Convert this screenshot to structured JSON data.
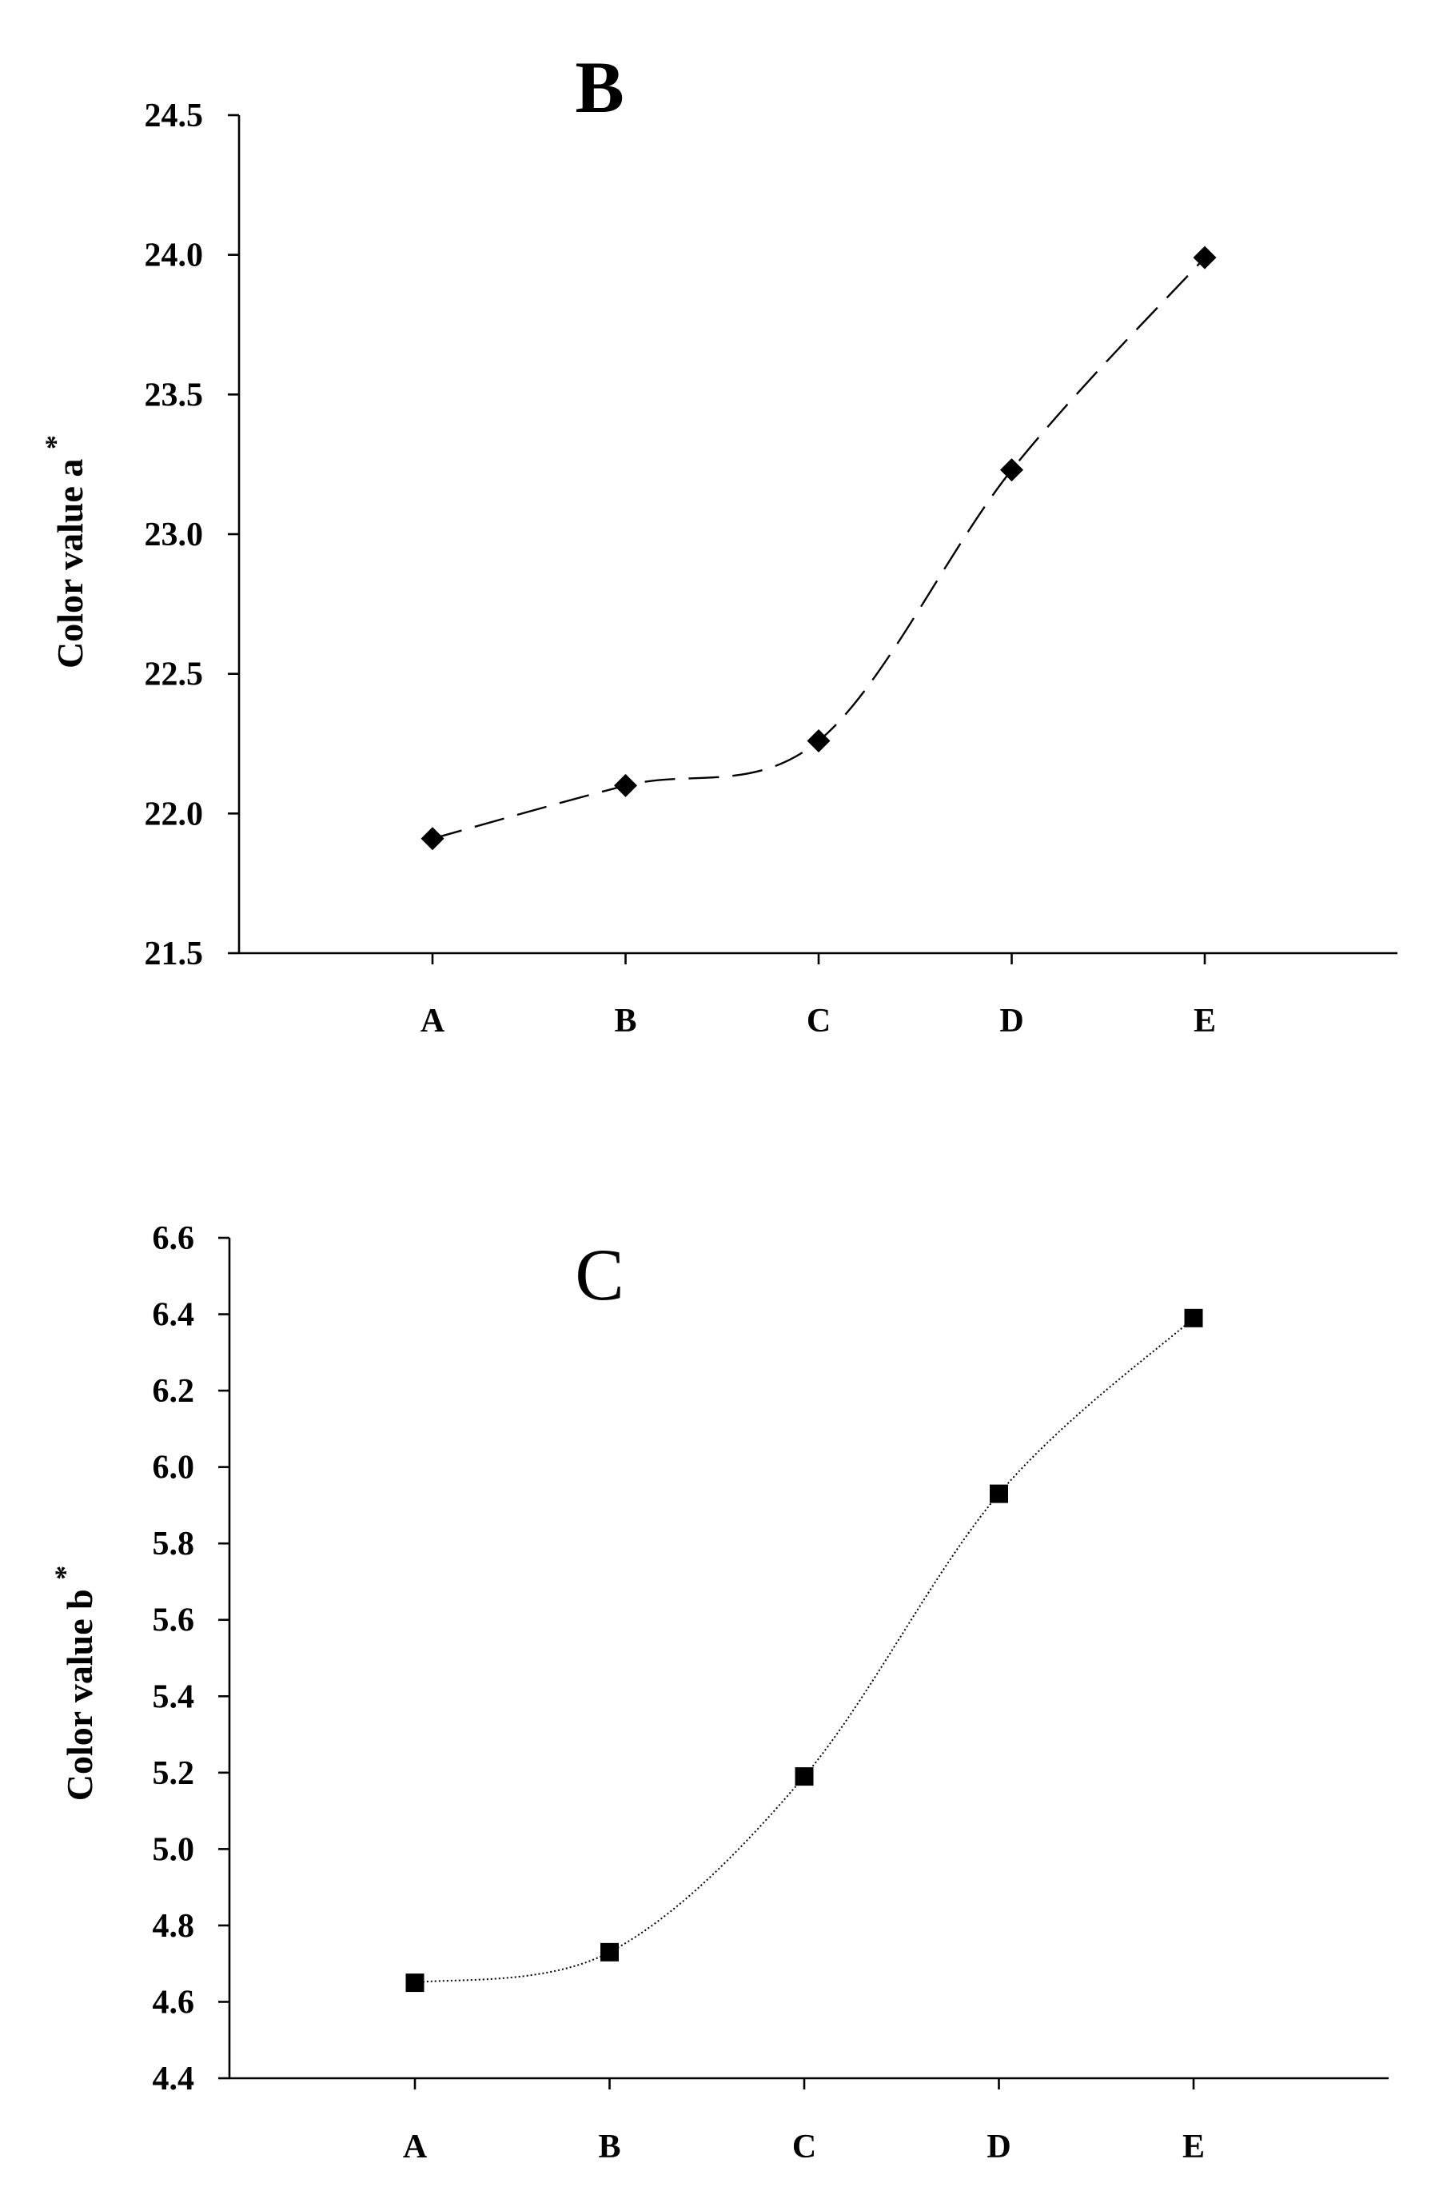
{
  "chart_data": [
    {
      "type": "line",
      "panel_label": "B",
      "ylabel": "Color value a",
      "ylabel_superscript": "*",
      "xlabel": "",
      "categories": [
        "A",
        "B",
        "C",
        "D",
        "E"
      ],
      "values": [
        21.91,
        22.1,
        22.26,
        23.23,
        23.99
      ],
      "ylim": [
        21.5,
        24.5
      ],
      "yticks": [
        "21.5",
        "22.0",
        "22.5",
        "23.0",
        "23.5",
        "24.0",
        "24.5"
      ],
      "marker": "diamond",
      "line_style": "dashed",
      "grid": false
    },
    {
      "type": "line",
      "panel_label": "C",
      "ylabel": "Color value b",
      "ylabel_superscript": "*",
      "xlabel": "",
      "categories": [
        "A",
        "B",
        "C",
        "D",
        "E"
      ],
      "values": [
        4.65,
        4.73,
        5.19,
        5.93,
        6.39
      ],
      "ylim": [
        4.4,
        6.6
      ],
      "yticks": [
        "4.4",
        "4.6",
        "4.8",
        "5.0",
        "5.2",
        "5.4",
        "5.6",
        "5.8",
        "6.0",
        "6.2",
        "6.4",
        "6.6"
      ],
      "marker": "square",
      "line_style": "dotted",
      "grid": false
    }
  ]
}
